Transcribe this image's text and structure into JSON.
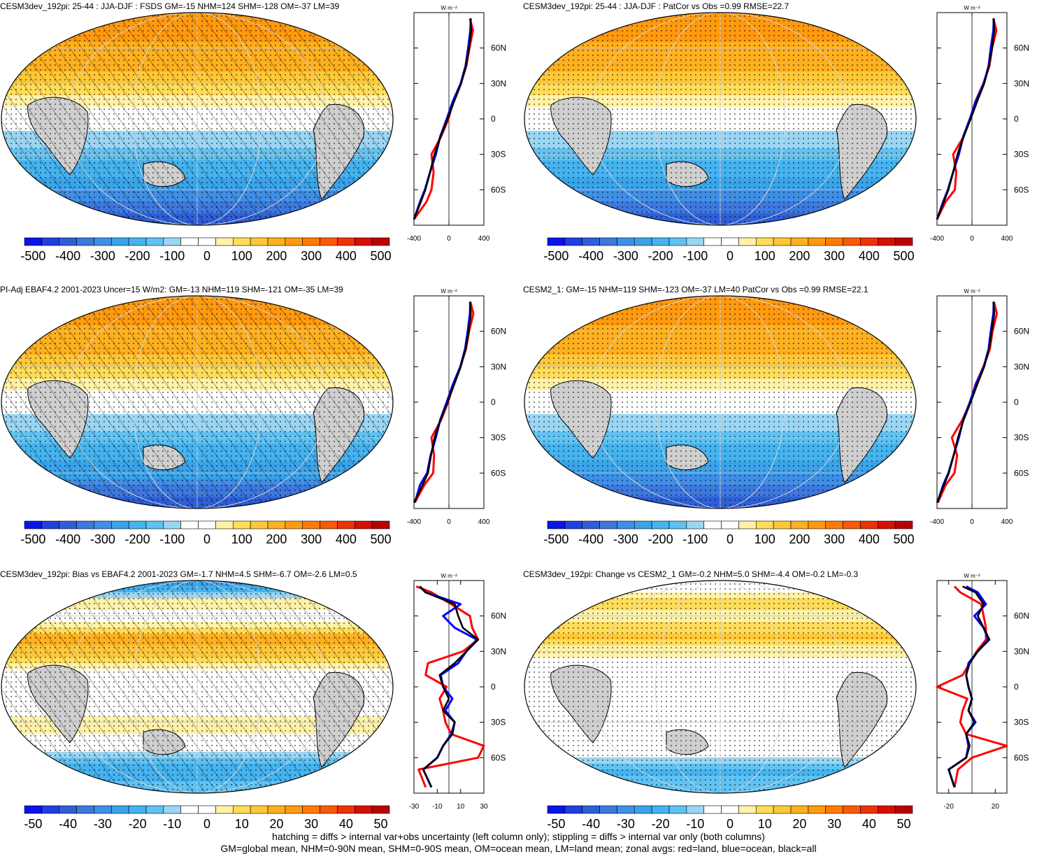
{
  "units_label": "W m⁻²",
  "lat_ticks": [
    "60N",
    "30N",
    "0",
    "30S",
    "60S"
  ],
  "colors": {
    "land": "#cfcfcf",
    "zonal_land": "#ff0000",
    "zonal_ocean": "#0000ff",
    "zonal_all": "#000000",
    "palette": [
      "#0a14e8",
      "#1f3fe0",
      "#2e5fd8",
      "#3d78dd",
      "#3f8fe6",
      "#3aa3ea",
      "#45b3ef",
      "#5fc2f2",
      "#9ad6f4",
      "#ffffff",
      "#ffffff",
      "#fff2a8",
      "#ffdc5a",
      "#ffc838",
      "#ffb020",
      "#ff9a10",
      "#ff7a08",
      "#f85a06",
      "#ee3205",
      "#d60e04",
      "#b80202"
    ]
  },
  "footer": {
    "line1": "hatching = diffs > internal var+obs uncertainty (left column only); stippling = diffs > internal var only (both columns)",
    "line2": "GM=global mean, NHM=0-90N mean, SHM=0-90S mean, OM=ocean mean, LM=land mean; zonal avgs: red=land, blue=ocean, black=all"
  },
  "panels": [
    {
      "title": "CESM3dev_192pi: 25-44 : JJA-DJF : FSDS GM=-15 NHM=124 SHM=-128 OM=-37 LM=39",
      "colorbar_labels": [
        "-500",
        "-400",
        "-300",
        "-200",
        "-100",
        "0",
        "100",
        "200",
        "300",
        "400",
        "500"
      ],
      "chart_data": {
        "type": "heatmap",
        "variable": "FSDS",
        "season": "JJA-DJF",
        "GM": -15,
        "NHM": 124,
        "SHM": -128,
        "OM": -37,
        "LM": 39,
        "colorbar_range": [
          -500,
          500
        ],
        "zonal_xlim": [
          -400,
          400
        ],
        "zonal_xticks": [
          "-400",
          "0",
          "400"
        ],
        "lat": [
          -85,
          -70,
          -60,
          -45,
          -30,
          -15,
          0,
          15,
          30,
          45,
          60,
          75,
          85
        ],
        "zonal_all": [
          -400,
          -320,
          -270,
          -215,
          -165,
          -95,
          -15,
          60,
          140,
          195,
          230,
          255,
          245
        ],
        "zonal_land": [
          -400,
          -255,
          -200,
          -175,
          -200,
          -90,
          -5,
          50,
          135,
          200,
          235,
          275,
          240
        ],
        "zonal_ocean": [
          -400,
          -330,
          -275,
          -215,
          -150,
          -100,
          -25,
          45,
          135,
          190,
          220,
          245,
          250
        ],
        "hatching": true
      }
    },
    {
      "title": "CESM3dev_192pi: 25-44 : JJA-DJF : PatCor vs Obs =0.99 RMSE=22.7",
      "colorbar_labels": [
        "-500",
        "-400",
        "-300",
        "-200",
        "-100",
        "0",
        "100",
        "200",
        "300",
        "400",
        "500"
      ],
      "chart_data": {
        "type": "heatmap",
        "PatCor": 0.99,
        "RMSE": 22.7,
        "colorbar_range": [
          -500,
          500
        ],
        "zonal_xlim": [
          -400,
          400
        ],
        "zonal_xticks": [
          "-400",
          "0",
          "400"
        ],
        "lat": [
          -85,
          -70,
          -60,
          -45,
          -30,
          -15,
          0,
          15,
          30,
          45,
          60,
          75,
          85
        ],
        "zonal_all": [
          -400,
          -320,
          -270,
          -215,
          -165,
          -95,
          -15,
          60,
          140,
          195,
          230,
          255,
          245
        ],
        "zonal_land": [
          -400,
          -300,
          -195,
          -180,
          -215,
          -95,
          -20,
          40,
          130,
          200,
          230,
          280,
          245
        ],
        "zonal_ocean": [
          -400,
          -330,
          -275,
          -215,
          -150,
          -100,
          -25,
          45,
          135,
          190,
          215,
          245,
          250
        ],
        "hatching": false
      }
    },
    {
      "title": "PI-Adj EBAF4.2 2001-2023 Uncer=15 W/m2: GM=-13 NHM=119 SHM=-121 OM=-35 LM=39",
      "colorbar_labels": [
        "-500",
        "-400",
        "-300",
        "-200",
        "-100",
        "0",
        "100",
        "200",
        "300",
        "400",
        "500"
      ],
      "chart_data": {
        "type": "heatmap",
        "Uncer": 15,
        "GM": -13,
        "NHM": 119,
        "SHM": -121,
        "OM": -35,
        "LM": 39,
        "colorbar_range": [
          -500,
          500
        ],
        "zonal_xlim": [
          -400,
          400
        ],
        "zonal_xticks": [
          "-400",
          "0",
          "400"
        ],
        "lat": [
          -85,
          -70,
          -60,
          -45,
          -30,
          -15,
          0,
          15,
          30,
          45,
          60,
          75,
          85
        ],
        "zonal_all": [
          -400,
          -300,
          -240,
          -205,
          -165,
          -95,
          -15,
          60,
          135,
          190,
          225,
          250,
          240
        ],
        "zonal_land": [
          -390,
          -280,
          -180,
          -170,
          -200,
          -90,
          -10,
          50,
          130,
          195,
          230,
          280,
          245
        ],
        "zonal_ocean": [
          -390,
          -330,
          -250,
          -210,
          -150,
          -100,
          -25,
          45,
          130,
          185,
          215,
          240,
          245
        ],
        "hatching": true
      }
    },
    {
      "title": "CESM2_1: GM=-15 NHM=119 SHM=-123 OM=-37 LM=40 PatCor vs Obs =0.99 RMSE=22.1",
      "colorbar_labels": [
        "-500",
        "-400",
        "-300",
        "-200",
        "-100",
        "0",
        "100",
        "200",
        "300",
        "400",
        "500"
      ],
      "chart_data": {
        "type": "heatmap",
        "GM": -15,
        "NHM": 119,
        "SHM": -123,
        "OM": -37,
        "LM": 40,
        "PatCor": 0.99,
        "RMSE": 22.1,
        "colorbar_range": [
          -500,
          500
        ],
        "zonal_xlim": [
          -400,
          400
        ],
        "zonal_xticks": [
          "-400",
          "0",
          "400"
        ],
        "lat": [
          -85,
          -70,
          -60,
          -45,
          -30,
          -15,
          0,
          15,
          30,
          45,
          60,
          75,
          85
        ],
        "zonal_all": [
          -400,
          -320,
          -265,
          -210,
          -160,
          -95,
          -15,
          60,
          140,
          195,
          225,
          255,
          245
        ],
        "zonal_land": [
          -390,
          -300,
          -200,
          -170,
          -230,
          -110,
          -20,
          40,
          130,
          205,
          235,
          285,
          250
        ],
        "zonal_ocean": [
          -395,
          -330,
          -270,
          -210,
          -150,
          -100,
          -25,
          45,
          135,
          190,
          215,
          245,
          250
        ],
        "hatching": false
      }
    },
    {
      "title": "CESM3dev_192pi: Bias vs EBAF4.2 2001-2023 GM=-1.7 NHM=4.5 SHM=-6.7 OM=-2.6 LM=0.5",
      "colorbar_labels": [
        "-50",
        "-40",
        "-30",
        "-20",
        "-10",
        "0",
        "10",
        "20",
        "30",
        "40",
        "50"
      ],
      "chart_data": {
        "type": "heatmap",
        "GM": -1.7,
        "NHM": 4.5,
        "SHM": -6.7,
        "OM": -2.6,
        "LM": 0.5,
        "colorbar_range": [
          -50,
          50
        ],
        "zonal_xlim": [
          -30,
          30
        ],
        "zonal_xticks": [
          "-30",
          "-10",
          "10",
          "30"
        ],
        "lat": [
          -85,
          -70,
          -60,
          -50,
          -40,
          -30,
          -20,
          -10,
          0,
          10,
          20,
          30,
          40,
          50,
          60,
          70,
          80,
          85
        ],
        "zonal_all": [
          -15,
          -22,
          -10,
          -5,
          3,
          5,
          -5,
          0,
          -5,
          -8,
          5,
          15,
          25,
          12,
          8,
          5,
          -20,
          -25
        ],
        "zonal_land": [
          -20,
          -26,
          25,
          30,
          2,
          -3,
          -5,
          -8,
          -2,
          -20,
          -18,
          12,
          25,
          20,
          18,
          2,
          -15,
          -28
        ],
        "zonal_ocean": [
          -15,
          -22,
          -10,
          -5,
          2,
          5,
          -3,
          3,
          -5,
          -7,
          8,
          15,
          24,
          5,
          -5,
          10,
          -20,
          -25
        ],
        "hatching": true
      }
    },
    {
      "title": "CESM3dev_192pi: Change vs CESM2_1 GM=-0.2 NHM=5.0 SHM=-4.4 OM=-0.2 LM=-0.3",
      "colorbar_labels": [
        "-50",
        "-40",
        "-30",
        "-20",
        "-10",
        "0",
        "10",
        "20",
        "30",
        "40",
        "50"
      ],
      "chart_data": {
        "type": "heatmap",
        "GM": -0.2,
        "NHM": 5.0,
        "SHM": -4.4,
        "OM": -0.2,
        "LM": -0.3,
        "colorbar_range": [
          -50,
          50
        ],
        "zonal_xlim": [
          -30,
          30
        ],
        "zonal_xticks": [
          "-20",
          "20"
        ],
        "lat": [
          -85,
          -70,
          -60,
          -50,
          -40,
          -30,
          -20,
          -10,
          0,
          10,
          20,
          30,
          40,
          50,
          60,
          70,
          80,
          85
        ],
        "zonal_all": [
          -15,
          -20,
          -5,
          -2,
          -5,
          2,
          -3,
          0,
          -3,
          -5,
          -2,
          5,
          15,
          10,
          5,
          10,
          3,
          -8
        ],
        "zonal_land": [
          -15,
          -12,
          0,
          30,
          -5,
          -10,
          -8,
          -4,
          -30,
          -8,
          -2,
          4,
          12,
          12,
          10,
          8,
          -10,
          -15
        ],
        "zonal_ocean": [
          -15,
          -20,
          -5,
          -3,
          -5,
          3,
          -3,
          0,
          -3,
          -5,
          -3,
          5,
          14,
          10,
          2,
          12,
          5,
          -5
        ],
        "hatching": false
      }
    }
  ]
}
